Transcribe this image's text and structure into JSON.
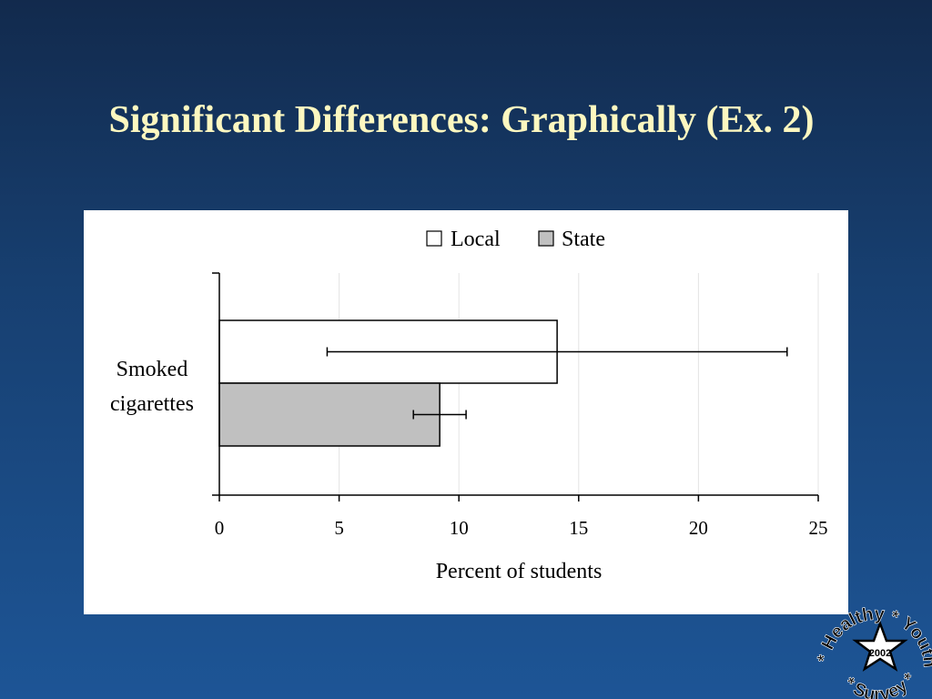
{
  "slide": {
    "title": "Significant Differences: Graphically (Ex. 2)"
  },
  "colors": {
    "title": "#fdf8c0",
    "local_fill": "#ffffff",
    "state_fill": "#c0c0c0"
  },
  "chart_data": {
    "type": "bar",
    "orientation": "horizontal",
    "categories": [
      "Smoked cigarettes"
    ],
    "category_label_lines": [
      "Smoked",
      "cigarettes"
    ],
    "series": [
      {
        "name": "Local",
        "values": [
          14.1
        ],
        "error_low": [
          4.5
        ],
        "error_high": [
          23.7
        ],
        "color": "#ffffff"
      },
      {
        "name": "State",
        "values": [
          9.2
        ],
        "error_low": [
          8.1
        ],
        "error_high": [
          10.3
        ],
        "color": "#c0c0c0"
      }
    ],
    "xlabel": "Percent of students",
    "ylabel": "",
    "xlim": [
      0,
      25
    ],
    "xticks": [
      0,
      5,
      10,
      15,
      20,
      25
    ],
    "grid": true,
    "legend": "top-center"
  },
  "logo": {
    "year": "2002",
    "words": [
      "Healthy",
      "Youth",
      "Survey"
    ],
    "separator": "*"
  }
}
